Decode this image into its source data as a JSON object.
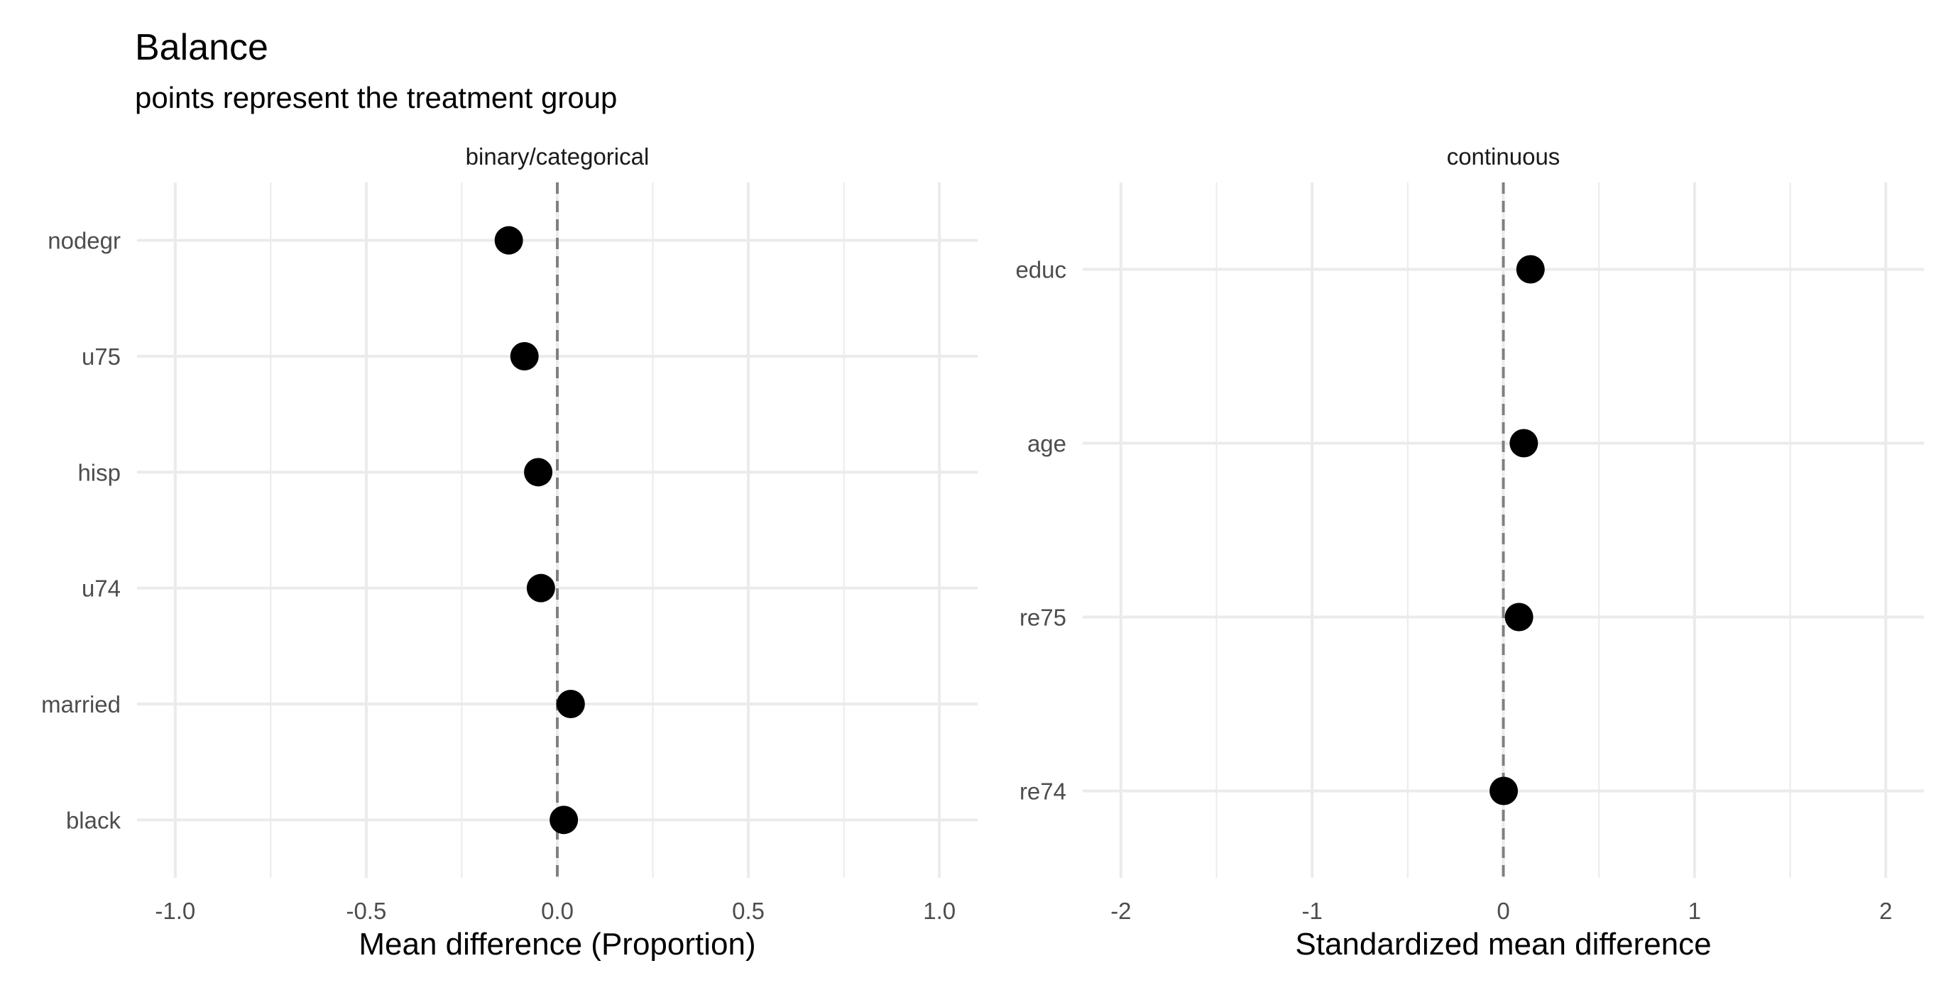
{
  "title": "Balance",
  "subtitle": "points represent the treatment group",
  "colors": {
    "background": "#ffffff",
    "grid": "#ebebeb",
    "reference_line": "#808080",
    "points": "#000000",
    "tick_text": "#4d4d4d"
  },
  "chart_data": [
    {
      "type": "scatter",
      "facet": "binary/categorical",
      "xlabel": "Mean difference (Proportion)",
      "ylabel": "",
      "xlim": [
        -1.1,
        1.1
      ],
      "x_ticks": [
        -1.0,
        -0.5,
        0.0,
        0.5,
        1.0
      ],
      "x_tick_labels": [
        "-1.0",
        "-0.5",
        "0.0",
        "0.5",
        "1.0"
      ],
      "reference_x": 0,
      "grid": true,
      "categories": [
        "nodegr",
        "u75",
        "hisp",
        "u74",
        "married",
        "black"
      ],
      "values": [
        -0.127,
        -0.086,
        -0.05,
        -0.043,
        0.035,
        0.017
      ]
    },
    {
      "type": "scatter",
      "facet": "continuous",
      "xlabel": "Standardized mean difference",
      "ylabel": "",
      "xlim": [
        -2.2,
        2.2
      ],
      "x_ticks": [
        -2,
        -1,
        0,
        1,
        2
      ],
      "x_tick_labels": [
        "-2",
        "-1",
        "0",
        "1",
        "2"
      ],
      "reference_x": 0,
      "grid": true,
      "categories": [
        "educ",
        "age",
        "re75",
        "re74"
      ],
      "values": [
        0.142,
        0.107,
        0.082,
        0.002
      ]
    }
  ]
}
